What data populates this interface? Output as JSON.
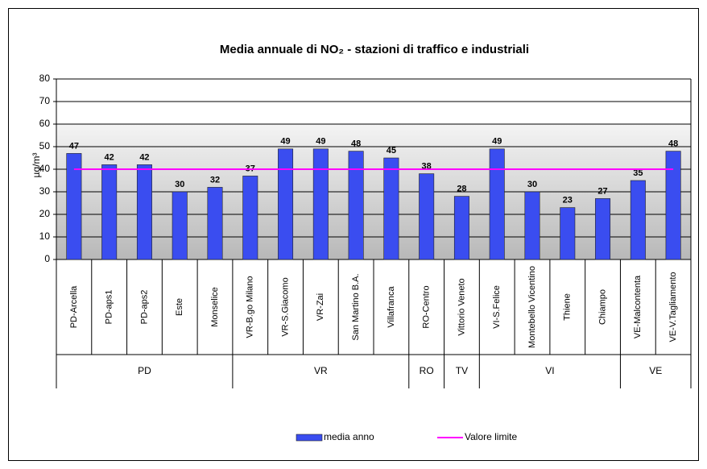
{
  "chart_data": {
    "type": "bar",
    "title": "Media annuale di NO₂ - stazioni di traffico e industriali",
    "y_label": "µg/m³",
    "groups": [
      {
        "name": "PD",
        "categories": [
          "PD-Arcella",
          "PD-aps1",
          "PD-aps2",
          "Este",
          "Monselice"
        ]
      },
      {
        "name": "VR",
        "categories": [
          "VR-B.go Milano",
          "VR-S.Giacomo",
          "VR-Zai",
          "San Martino B.A.",
          "Villafranca"
        ]
      },
      {
        "name": "RO",
        "categories": [
          "RO-Centro"
        ]
      },
      {
        "name": "TV",
        "categories": [
          "Vittorio Veneto"
        ]
      },
      {
        "name": "VI",
        "categories": [
          "VI-S.Felice",
          "Montebello Vicentino",
          "Thiene",
          "Chiampo"
        ]
      },
      {
        "name": "VE",
        "categories": [
          "VE-Malcontenta",
          "VE-V.Tagliamento"
        ]
      }
    ],
    "series": [
      {
        "name": "media anno",
        "type": "bar",
        "color": "#3a4df0",
        "values": [
          47,
          42,
          42,
          30,
          32,
          37,
          49,
          49,
          48,
          45,
          38,
          28,
          49,
          30,
          23,
          27,
          35,
          48
        ]
      },
      {
        "name": "Valore limite",
        "type": "line",
        "color": "#ff00ff",
        "values": [
          40,
          40,
          40,
          40,
          40,
          40,
          40,
          40,
          40,
          40,
          40,
          40,
          40,
          40,
          40,
          40,
          40,
          40
        ]
      }
    ],
    "ylim": [
      0,
      80
    ],
    "yticks": [
      0,
      10,
      20,
      30,
      40,
      50,
      60,
      70,
      80
    ],
    "grid": true
  }
}
